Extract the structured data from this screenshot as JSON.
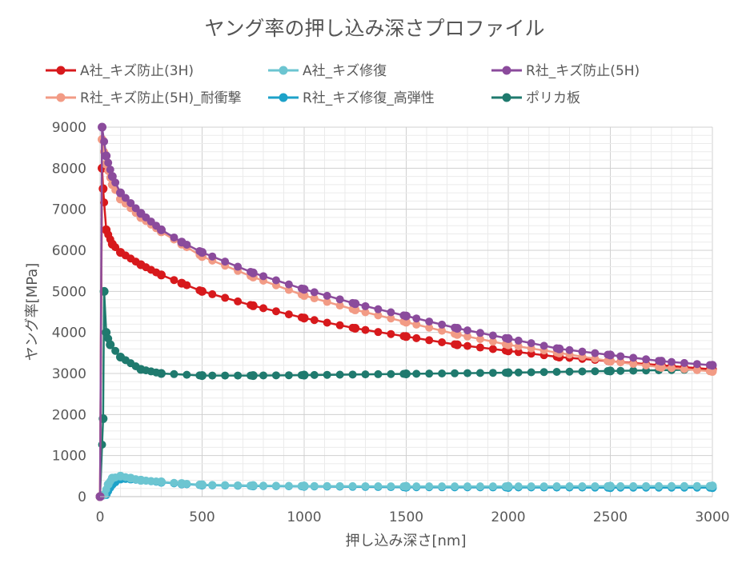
{
  "chart_data": {
    "type": "line",
    "title": "ヤング率の押し込み深さプロファイル",
    "xlabel": "押し込み深さ[nm]",
    "ylabel": "ヤング率[MPa]",
    "xlim": [
      0,
      3000
    ],
    "ylim": [
      0,
      9000
    ],
    "x_ticks": [
      0,
      500,
      1000,
      1500,
      2000,
      2500,
      3000
    ],
    "y_ticks": [
      0,
      1000,
      2000,
      3000,
      4000,
      5000,
      6000,
      7000,
      8000,
      9000
    ],
    "grid": true,
    "legend_position": "top",
    "series": [
      {
        "name": "A社_キズ防止(3H)",
        "color": "#d7191c",
        "points": [
          [
            0,
            0
          ],
          [
            10,
            8000
          ],
          [
            15,
            7500
          ],
          [
            30,
            6500
          ],
          [
            60,
            6150
          ],
          [
            100,
            5950
          ],
          [
            200,
            5650
          ],
          [
            300,
            5400
          ],
          [
            400,
            5200
          ],
          [
            500,
            5000
          ],
          [
            750,
            4650
          ],
          [
            1000,
            4350
          ],
          [
            1250,
            4100
          ],
          [
            1500,
            3900
          ],
          [
            1750,
            3700
          ],
          [
            2000,
            3550
          ],
          [
            2250,
            3400
          ],
          [
            2500,
            3300
          ],
          [
            2750,
            3200
          ],
          [
            3000,
            3100
          ]
        ]
      },
      {
        "name": "A社_キズ修復",
        "color": "#6cc5d1",
        "points": [
          [
            0,
            0
          ],
          [
            20,
            50
          ],
          [
            40,
            300
          ],
          [
            60,
            450
          ],
          [
            100,
            500
          ],
          [
            150,
            450
          ],
          [
            200,
            400
          ],
          [
            300,
            360
          ],
          [
            400,
            320
          ],
          [
            500,
            290
          ],
          [
            750,
            270
          ],
          [
            1000,
            260
          ],
          [
            1500,
            250
          ],
          [
            2000,
            250
          ],
          [
            2500,
            255
          ],
          [
            3000,
            260
          ]
        ]
      },
      {
        "name": "R社_キズ防止(5H)",
        "color": "#8b4b9c",
        "points": [
          [
            0,
            0
          ],
          [
            10,
            9000
          ],
          [
            30,
            8300
          ],
          [
            60,
            7800
          ],
          [
            100,
            7400
          ],
          [
            200,
            6900
          ],
          [
            300,
            6500
          ],
          [
            400,
            6200
          ],
          [
            500,
            5950
          ],
          [
            750,
            5450
          ],
          [
            1000,
            5050
          ],
          [
            1250,
            4700
          ],
          [
            1500,
            4400
          ],
          [
            1750,
            4100
          ],
          [
            2000,
            3850
          ],
          [
            2250,
            3600
          ],
          [
            2500,
            3450
          ],
          [
            2750,
            3300
          ],
          [
            3000,
            3200
          ]
        ]
      },
      {
        "name": "R社_キズ防止(5H)_耐衝撃",
        "color": "#f29b85",
        "points": [
          [
            0,
            0
          ],
          [
            10,
            8700
          ],
          [
            30,
            8100
          ],
          [
            60,
            7600
          ],
          [
            100,
            7250
          ],
          [
            200,
            6800
          ],
          [
            300,
            6450
          ],
          [
            400,
            6150
          ],
          [
            500,
            5850
          ],
          [
            750,
            5350
          ],
          [
            1000,
            4900
          ],
          [
            1250,
            4550
          ],
          [
            1500,
            4250
          ],
          [
            1750,
            3950
          ],
          [
            2000,
            3700
          ],
          [
            2250,
            3500
          ],
          [
            2500,
            3300
          ],
          [
            2750,
            3150
          ],
          [
            3000,
            3050
          ]
        ]
      },
      {
        "name": "R社_キズ修復_高弾性",
        "color": "#1da2c9",
        "points": [
          [
            0,
            0
          ],
          [
            30,
            50
          ],
          [
            60,
            300
          ],
          [
            100,
            430
          ],
          [
            150,
            430
          ],
          [
            200,
            400
          ],
          [
            300,
            350
          ],
          [
            400,
            310
          ],
          [
            500,
            280
          ],
          [
            750,
            260
          ],
          [
            1000,
            250
          ],
          [
            1500,
            230
          ],
          [
            2000,
            225
          ],
          [
            2500,
            220
          ],
          [
            3000,
            220
          ]
        ]
      },
      {
        "name": "ポリカ板",
        "color": "#1f7a6e",
        "points": [
          [
            0,
            0
          ],
          [
            15,
            1900
          ],
          [
            20,
            5000
          ],
          [
            30,
            4000
          ],
          [
            50,
            3700
          ],
          [
            100,
            3400
          ],
          [
            200,
            3100
          ],
          [
            300,
            3000
          ],
          [
            500,
            2950
          ],
          [
            750,
            2950
          ],
          [
            1000,
            2960
          ],
          [
            1500,
            2990
          ],
          [
            2000,
            3020
          ],
          [
            2500,
            3060
          ],
          [
            3000,
            3100
          ]
        ]
      }
    ]
  }
}
